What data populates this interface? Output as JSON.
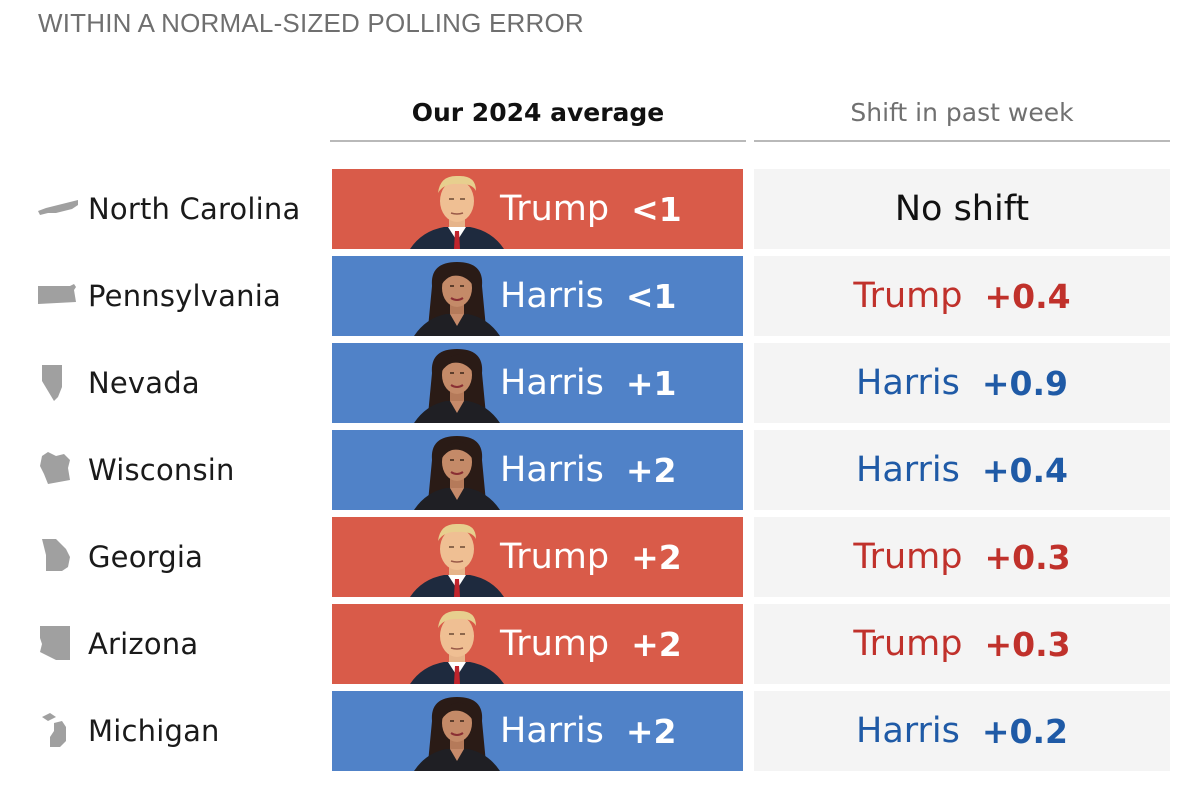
{
  "section_label": "WITHIN A NORMAL-SIZED POLLING ERROR",
  "columns": {
    "average": "Our 2024 average",
    "shift": "Shift in past week"
  },
  "colors": {
    "trump": "#d95b49",
    "harris": "#5082c8",
    "trump_text": "#c0312b",
    "harris_text": "#1f5aa6",
    "state_icon": "#a0a0a0"
  },
  "chart_data": {
    "type": "table",
    "rows": [
      {
        "state": "North Carolina",
        "state_icon": "north-carolina-icon",
        "leader": "Trump",
        "margin": "<1",
        "shift_leader": "",
        "shift": "",
        "shift_text": "No shift"
      },
      {
        "state": "Pennsylvania",
        "state_icon": "pennsylvania-icon",
        "leader": "Harris",
        "margin": "<1",
        "shift_leader": "Trump",
        "shift": "+0.4",
        "shift_text": ""
      },
      {
        "state": "Nevada",
        "state_icon": "nevada-icon",
        "leader": "Harris",
        "margin": "+1",
        "shift_leader": "Harris",
        "shift": "+0.9",
        "shift_text": ""
      },
      {
        "state": "Wisconsin",
        "state_icon": "wisconsin-icon",
        "leader": "Harris",
        "margin": "+2",
        "shift_leader": "Harris",
        "shift": "+0.4",
        "shift_text": ""
      },
      {
        "state": "Georgia",
        "state_icon": "georgia-icon",
        "leader": "Trump",
        "margin": "+2",
        "shift_leader": "Trump",
        "shift": "+0.3",
        "shift_text": ""
      },
      {
        "state": "Arizona",
        "state_icon": "arizona-icon",
        "leader": "Trump",
        "margin": "+2",
        "shift_leader": "Trump",
        "shift": "+0.3",
        "shift_text": ""
      },
      {
        "state": "Michigan",
        "state_icon": "michigan-icon",
        "leader": "Harris",
        "margin": "+2",
        "shift_leader": "Harris",
        "shift": "+0.2",
        "shift_text": ""
      }
    ]
  }
}
